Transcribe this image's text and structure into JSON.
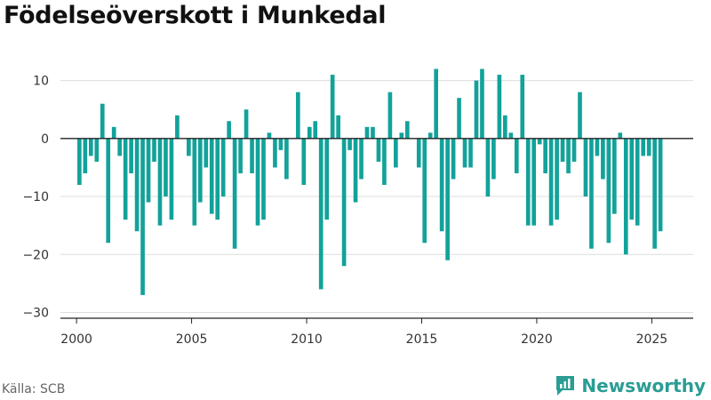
{
  "title": "Födelseöverskott i Munkedal",
  "source": "Källa: SCB",
  "brand": {
    "name": "Newsworthy",
    "icon": "newsworthy-logo-icon",
    "color": "#2a9d94"
  },
  "chart_data": {
    "type": "bar",
    "title": "Födelseöverskott i Munkedal",
    "xlabel": "",
    "ylabel": "",
    "bar_color": "#12a29a",
    "grid": true,
    "ylim": [
      -31,
      15
    ],
    "xlim": [
      1999.3,
      2026.8
    ],
    "yticks": [
      10,
      0,
      -10,
      -20,
      -30
    ],
    "ytick_labels": [
      "10",
      "0",
      "−10",
      "−20",
      "−30"
    ],
    "xticks": [
      2000,
      2005,
      2010,
      2015,
      2020,
      2025
    ],
    "xtick_labels": [
      "2000",
      "2005",
      "2010",
      "2015",
      "2020",
      "2025"
    ],
    "start_year": 2000,
    "periods_per_year": 4,
    "values": [
      -8,
      -6,
      -3,
      -4,
      6,
      -18,
      2,
      -3,
      -14,
      -6,
      -16,
      -27,
      -11,
      -4,
      -15,
      -10,
      -14,
      4,
      0,
      -3,
      -15,
      -11,
      -5,
      -13,
      -14,
      -10,
      3,
      -19,
      -6,
      5,
      -6,
      -15,
      -14,
      1,
      -5,
      -2,
      -7,
      0,
      8,
      -8,
      2,
      3,
      -26,
      -14,
      11,
      4,
      -22,
      -2,
      -11,
      -7,
      2,
      2,
      -4,
      -8,
      8,
      -5,
      1,
      3,
      0,
      -5,
      -18,
      1,
      12,
      -16,
      -21,
      -7,
      7,
      -5,
      -5,
      10,
      12,
      -10,
      -7,
      11,
      4,
      1,
      -6,
      11,
      -15,
      -15,
      -1,
      -6,
      -15,
      -14,
      -4,
      -6,
      -4,
      8,
      -10,
      -19,
      -3,
      -7,
      -18,
      -13,
      1,
      -20,
      -14,
      -15,
      -3,
      -3,
      -19,
      -16
    ]
  }
}
